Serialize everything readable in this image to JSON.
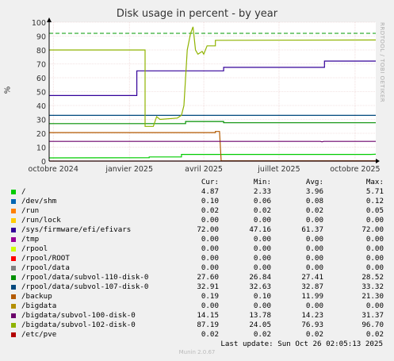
{
  "title": "Disk usage in percent - by year",
  "watermark": "RRDTOOL / TOBI OETIKER",
  "ylabel": "%",
  "footer": "Munin 2.0.67",
  "last_update": "Last update: Sun Oct 26 02:05:13 2025",
  "legend_headers": {
    "cur": "Cur:",
    "min": "Min:",
    "avg": "Avg:",
    "max": "Max:"
  },
  "legend": [
    {
      "name": "/",
      "color": "#00cc00",
      "cur": "4.87",
      "min": "2.33",
      "avg": "3.96",
      "max": "5.71"
    },
    {
      "name": "/dev/shm",
      "color": "#0066b3",
      "cur": "0.10",
      "min": "0.06",
      "avg": "0.08",
      "max": "0.12"
    },
    {
      "name": "/run",
      "color": "#ff8000",
      "cur": "0.02",
      "min": "0.02",
      "avg": "0.02",
      "max": "0.05"
    },
    {
      "name": "/run/lock",
      "color": "#ffcc00",
      "cur": "0.00",
      "min": "0.00",
      "avg": "0.00",
      "max": "0.00"
    },
    {
      "name": "/sys/firmware/efi/efivars",
      "color": "#330099",
      "cur": "72.00",
      "min": "47.16",
      "avg": "61.37",
      "max": "72.00"
    },
    {
      "name": "/tmp",
      "color": "#990099",
      "cur": "0.00",
      "min": "0.00",
      "avg": "0.00",
      "max": "0.00"
    },
    {
      "name": "/rpool",
      "color": "#ccff00",
      "cur": "0.00",
      "min": "0.00",
      "avg": "0.00",
      "max": "0.00"
    },
    {
      "name": "/rpool/ROOT",
      "color": "#ff0000",
      "cur": "0.00",
      "min": "0.00",
      "avg": "0.00",
      "max": "0.00"
    },
    {
      "name": "/rpool/data",
      "color": "#808080",
      "cur": "0.00",
      "min": "0.00",
      "avg": "0.00",
      "max": "0.00"
    },
    {
      "name": "/rpool/data/subvol-110-disk-0",
      "color": "#008f00",
      "cur": "27.60",
      "min": "26.84",
      "avg": "27.41",
      "max": "28.52"
    },
    {
      "name": "/rpool/data/subvol-107-disk-0",
      "color": "#00487d",
      "cur": "32.91",
      "min": "32.63",
      "avg": "32.87",
      "max": "33.32"
    },
    {
      "name": "/backup",
      "color": "#b35a00",
      "cur": "0.19",
      "min": "0.10",
      "avg": "11.99",
      "max": "21.30"
    },
    {
      "name": "/bigdata",
      "color": "#b38f00",
      "cur": "0.00",
      "min": "0.00",
      "avg": "0.00",
      "max": "0.00"
    },
    {
      "name": "/bigdata/subvol-100-disk-0",
      "color": "#6b006b",
      "cur": "14.15",
      "min": "13.78",
      "avg": "14.23",
      "max": "31.37"
    },
    {
      "name": "/bigdata/subvol-102-disk-0",
      "color": "#8fb300",
      "cur": "87.19",
      "min": "24.05",
      "avg": "76.93",
      "max": "96.70"
    },
    {
      "name": "/etc/pve",
      "color": "#b30000",
      "cur": "0.02",
      "min": "0.02",
      "avg": "0.02",
      "max": "0.02"
    }
  ],
  "chart_data": {
    "type": "line",
    "title": "Disk usage in percent - by year",
    "ylabel": "%",
    "ylim": [
      0,
      100
    ],
    "y_ticks": [
      0,
      10,
      20,
      30,
      40,
      50,
      60,
      70,
      80,
      90,
      100
    ],
    "x_tick_labels": [
      "octobre 2024",
      "janvier 2025",
      "avril 2025",
      "juillet 2025",
      "octobre 2025"
    ],
    "x_tick_dates": [
      "2024-10-01",
      "2025-01-01",
      "2025-04-01",
      "2025-07-01",
      "2025-10-01"
    ],
    "xlim": [
      "2024-09-26",
      "2025-10-26"
    ],
    "threshold": {
      "value": 92,
      "color": "#009900",
      "style": "dashed"
    },
    "grid": true,
    "series": [
      {
        "name": "/",
        "color": "#00cc00",
        "points": [
          [
            "2024-09-26",
            2.3
          ],
          [
            "2025-01-25",
            2.4
          ],
          [
            "2025-01-25",
            3.0
          ],
          [
            "2025-03-05",
            3.0
          ],
          [
            "2025-03-05",
            4.8
          ],
          [
            "2025-10-20",
            4.8
          ],
          [
            "2025-10-26",
            4.9
          ]
        ]
      },
      {
        "name": "/sys/firmware/efi/efivars",
        "color": "#330099",
        "points": [
          [
            "2024-09-26",
            47.2
          ],
          [
            "2025-01-10",
            47.2
          ],
          [
            "2025-01-10",
            65.0
          ],
          [
            "2025-04-25",
            65.0
          ],
          [
            "2025-04-25",
            67.5
          ],
          [
            "2025-08-25",
            67.5
          ],
          [
            "2025-08-25",
            72.0
          ],
          [
            "2025-10-26",
            72.0
          ]
        ]
      },
      {
        "name": "/rpool/data/subvol-110-disk-0",
        "color": "#008f00",
        "points": [
          [
            "2024-09-26",
            27.0
          ],
          [
            "2025-03-10",
            27.0
          ],
          [
            "2025-03-10",
            28.5
          ],
          [
            "2025-04-25",
            28.5
          ],
          [
            "2025-04-25",
            27.6
          ],
          [
            "2025-10-26",
            27.6
          ]
        ]
      },
      {
        "name": "/rpool/data/subvol-107-disk-0",
        "color": "#00487d",
        "points": [
          [
            "2024-09-26",
            32.9
          ],
          [
            "2025-10-26",
            32.9
          ]
        ]
      },
      {
        "name": "/backup",
        "color": "#b35a00",
        "points": [
          [
            "2024-09-26",
            20.5
          ],
          [
            "2025-04-15",
            20.5
          ],
          [
            "2025-04-15",
            21.3
          ],
          [
            "2025-04-20",
            21.3
          ],
          [
            "2025-04-22",
            0.2
          ],
          [
            "2025-10-26",
            0.2
          ]
        ]
      },
      {
        "name": "/bigdata/subvol-100-disk-0",
        "color": "#6b006b",
        "points": [
          [
            "2024-09-26",
            14.2
          ],
          [
            "2025-08-20",
            14.2
          ],
          [
            "2025-08-22",
            13.8
          ],
          [
            "2025-08-24",
            14.2
          ],
          [
            "2025-10-26",
            14.2
          ]
        ]
      },
      {
        "name": "/bigdata/subvol-102-disk-0",
        "color": "#8fb300",
        "points": [
          [
            "2024-09-26",
            80.0
          ],
          [
            "2025-01-20",
            80.0
          ],
          [
            "2025-01-20",
            25.0
          ],
          [
            "2025-01-30",
            25.0
          ],
          [
            "2025-02-03",
            32.0
          ],
          [
            "2025-02-07",
            30.0
          ],
          [
            "2025-02-28",
            31.0
          ],
          [
            "2025-03-05",
            33.0
          ],
          [
            "2025-03-08",
            40.0
          ],
          [
            "2025-03-12",
            80.0
          ],
          [
            "2025-03-16",
            92.0
          ],
          [
            "2025-03-19",
            96.7
          ],
          [
            "2025-03-22",
            80.0
          ],
          [
            "2025-03-25",
            77.0
          ],
          [
            "2025-03-30",
            79.0
          ],
          [
            "2025-04-01",
            77.0
          ],
          [
            "2025-04-05",
            83.0
          ],
          [
            "2025-04-15",
            83.0
          ],
          [
            "2025-04-15",
            87.0
          ],
          [
            "2025-10-26",
            87.2
          ]
        ]
      },
      {
        "name": "/etc/pve",
        "color": "#b30000",
        "points": [
          [
            "2024-09-26",
            0.0
          ],
          [
            "2025-10-26",
            0.0
          ]
        ]
      }
    ]
  }
}
